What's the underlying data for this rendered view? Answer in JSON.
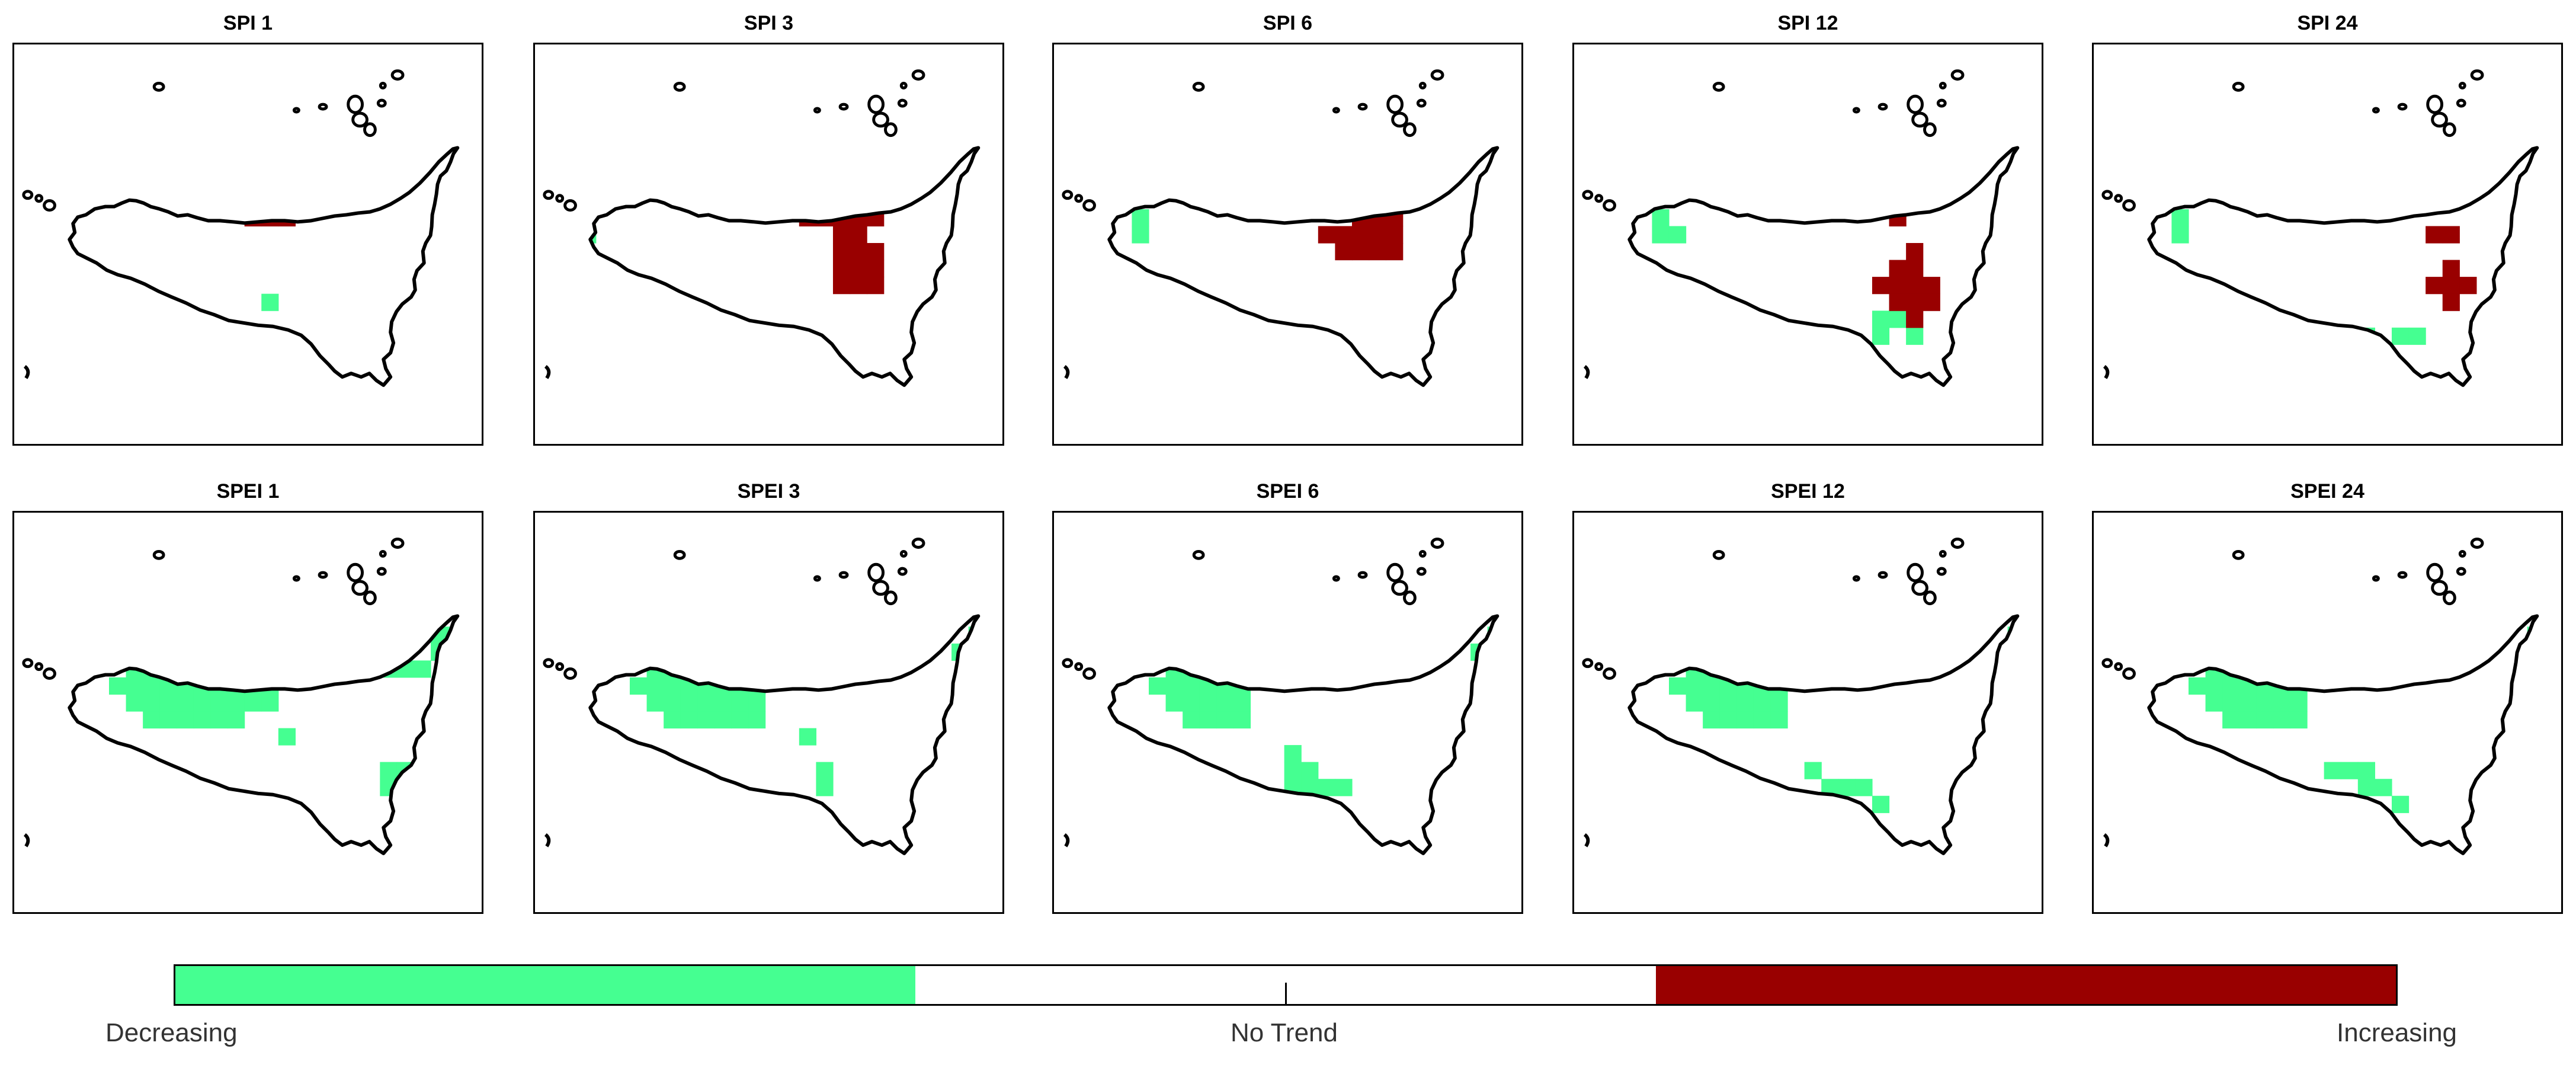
{
  "colors": {
    "decreasing": "#45ff91",
    "no_trend": "#ffffff",
    "increasing": "#990000",
    "outline": "#000000"
  },
  "panels": [
    {
      "title": "SPI 1",
      "decreasing": [
        [
          13,
          13
        ]
      ],
      "increasing": [
        [
          17,
          7
        ],
        [
          18,
          7
        ],
        [
          12,
          8
        ],
        [
          13,
          8
        ],
        [
          14,
          8
        ]
      ]
    },
    {
      "title": "SPI 3",
      "decreasing": [
        [
          1,
          9
        ]
      ],
      "increasing": [
        [
          15,
          7
        ],
        [
          16,
          7
        ],
        [
          17,
          7
        ],
        [
          18,
          7
        ],
        [
          14,
          8
        ],
        [
          15,
          8
        ],
        [
          16,
          8
        ],
        [
          17,
          8
        ],
        [
          18,
          8
        ],
        [
          16,
          9
        ],
        [
          17,
          9
        ],
        [
          16,
          10
        ],
        [
          17,
          10
        ],
        [
          18,
          10
        ],
        [
          16,
          11
        ],
        [
          17,
          11
        ],
        [
          18,
          11
        ],
        [
          16,
          12
        ],
        [
          17,
          12
        ],
        [
          18,
          12
        ]
      ]
    },
    {
      "title": "SPI 6",
      "decreasing": [
        [
          3,
          8
        ],
        [
          3,
          9
        ]
      ],
      "increasing": [
        [
          16,
          7
        ],
        [
          17,
          7
        ],
        [
          18,
          7
        ],
        [
          16,
          8
        ],
        [
          17,
          8
        ],
        [
          18,
          8
        ],
        [
          14,
          9
        ],
        [
          15,
          9
        ],
        [
          16,
          9
        ],
        [
          17,
          9
        ],
        [
          18,
          9
        ],
        [
          15,
          10
        ],
        [
          16,
          10
        ],
        [
          17,
          10
        ],
        [
          18,
          10
        ]
      ]
    },
    {
      "title": "SPI 12",
      "decreasing": [
        [
          3,
          8
        ],
        [
          3,
          9
        ],
        [
          4,
          9
        ],
        [
          16,
          14
        ],
        [
          17,
          14
        ],
        [
          16,
          15
        ],
        [
          18,
          15
        ]
      ],
      "increasing": [
        [
          17,
          8
        ],
        [
          18,
          10
        ],
        [
          17,
          11
        ],
        [
          18,
          11
        ],
        [
          16,
          12
        ],
        [
          17,
          12
        ],
        [
          18,
          12
        ],
        [
          19,
          12
        ],
        [
          17,
          13
        ],
        [
          18,
          13
        ],
        [
          19,
          13
        ],
        [
          18,
          14
        ]
      ]
    },
    {
      "title": "SPI 24",
      "decreasing": [
        [
          3,
          8
        ],
        [
          3,
          9
        ],
        [
          14,
          15
        ],
        [
          16,
          15
        ],
        [
          17,
          15
        ]
      ],
      "increasing": [
        [
          18,
          9
        ],
        [
          19,
          9
        ],
        [
          19,
          11
        ],
        [
          18,
          12
        ],
        [
          19,
          12
        ],
        [
          20,
          12
        ],
        [
          19,
          13
        ]
      ]
    },
    {
      "title": "SPEI 1",
      "decreasing": [
        [
          6,
          5
        ],
        [
          7,
          5
        ],
        [
          8,
          5
        ],
        [
          9,
          5
        ],
        [
          10,
          5
        ],
        [
          11,
          5
        ],
        [
          12,
          5
        ],
        [
          13,
          5
        ],
        [
          14,
          5
        ],
        [
          23,
          5
        ],
        [
          24,
          5
        ],
        [
          5,
          6
        ],
        [
          6,
          6
        ],
        [
          7,
          6
        ],
        [
          8,
          6
        ],
        [
          9,
          6
        ],
        [
          10,
          6
        ],
        [
          11,
          6
        ],
        [
          12,
          6
        ],
        [
          13,
          6
        ],
        [
          14,
          6
        ],
        [
          20,
          6
        ],
        [
          23,
          6
        ],
        [
          24,
          6
        ],
        [
          5,
          7
        ],
        [
          6,
          7
        ],
        [
          7,
          7
        ],
        [
          8,
          7
        ],
        [
          9,
          7
        ],
        [
          10,
          7
        ],
        [
          11,
          7
        ],
        [
          12,
          7
        ],
        [
          13,
          7
        ],
        [
          18,
          7
        ],
        [
          19,
          7
        ],
        [
          20,
          7
        ],
        [
          21,
          7
        ],
        [
          22,
          7
        ],
        [
          4,
          8
        ],
        [
          5,
          8
        ],
        [
          6,
          8
        ],
        [
          7,
          8
        ],
        [
          8,
          8
        ],
        [
          9,
          8
        ],
        [
          10,
          8
        ],
        [
          11,
          8
        ],
        [
          12,
          8
        ],
        [
          13,
          8
        ],
        [
          24,
          8
        ],
        [
          5,
          9
        ],
        [
          6,
          9
        ],
        [
          7,
          9
        ],
        [
          8,
          9
        ],
        [
          9,
          9
        ],
        [
          10,
          9
        ],
        [
          11,
          9
        ],
        [
          12,
          9
        ],
        [
          13,
          9
        ],
        [
          6,
          10
        ],
        [
          7,
          10
        ],
        [
          8,
          10
        ],
        [
          9,
          10
        ],
        [
          10,
          10
        ],
        [
          11,
          10
        ],
        [
          14,
          11
        ],
        [
          20,
          13
        ],
        [
          21,
          13
        ],
        [
          20,
          14
        ],
        [
          21,
          15
        ]
      ],
      "increasing": []
    },
    {
      "title": "SPEI 3",
      "decreasing": [
        [
          6,
          5
        ],
        [
          7,
          5
        ],
        [
          8,
          5
        ],
        [
          9,
          5
        ],
        [
          10,
          5
        ],
        [
          24,
          5
        ],
        [
          5,
          6
        ],
        [
          6,
          6
        ],
        [
          7,
          6
        ],
        [
          8,
          6
        ],
        [
          9,
          6
        ],
        [
          10,
          6
        ],
        [
          11,
          6
        ],
        [
          12,
          6
        ],
        [
          13,
          6
        ],
        [
          14,
          6
        ],
        [
          15,
          6
        ],
        [
          16,
          6
        ],
        [
          17,
          6
        ],
        [
          18,
          6
        ],
        [
          19,
          6
        ],
        [
          23,
          6
        ],
        [
          5,
          7
        ],
        [
          6,
          7
        ],
        [
          7,
          7
        ],
        [
          8,
          7
        ],
        [
          9,
          7
        ],
        [
          10,
          7
        ],
        [
          11,
          7
        ],
        [
          12,
          7
        ],
        [
          4,
          8
        ],
        [
          5,
          8
        ],
        [
          6,
          8
        ],
        [
          7,
          8
        ],
        [
          8,
          8
        ],
        [
          9,
          8
        ],
        [
          10,
          8
        ],
        [
          11,
          8
        ],
        [
          5,
          9
        ],
        [
          6,
          9
        ],
        [
          7,
          9
        ],
        [
          8,
          9
        ],
        [
          9,
          9
        ],
        [
          10,
          9
        ],
        [
          11,
          9
        ],
        [
          6,
          10
        ],
        [
          7,
          10
        ],
        [
          8,
          10
        ],
        [
          9,
          10
        ],
        [
          10,
          10
        ],
        [
          11,
          10
        ],
        [
          14,
          11
        ],
        [
          15,
          13
        ],
        [
          15,
          14
        ]
      ],
      "increasing": []
    },
    {
      "title": "SPEI 6",
      "decreasing": [
        [
          5,
          5
        ],
        [
          6,
          5
        ],
        [
          7,
          5
        ],
        [
          8,
          5
        ],
        [
          9,
          5
        ],
        [
          24,
          5
        ],
        [
          25,
          5
        ],
        [
          5,
          6
        ],
        [
          6,
          6
        ],
        [
          7,
          6
        ],
        [
          8,
          6
        ],
        [
          9,
          6
        ],
        [
          12,
          6
        ],
        [
          14,
          6
        ],
        [
          23,
          6
        ],
        [
          24,
          6
        ],
        [
          5,
          7
        ],
        [
          6,
          7
        ],
        [
          7,
          7
        ],
        [
          8,
          7
        ],
        [
          9,
          7
        ],
        [
          24,
          7
        ],
        [
          4,
          8
        ],
        [
          5,
          8
        ],
        [
          6,
          8
        ],
        [
          7,
          8
        ],
        [
          8,
          8
        ],
        [
          9,
          8
        ],
        [
          5,
          9
        ],
        [
          6,
          9
        ],
        [
          7,
          9
        ],
        [
          8,
          9
        ],
        [
          9,
          9
        ],
        [
          6,
          10
        ],
        [
          7,
          10
        ],
        [
          8,
          10
        ],
        [
          9,
          10
        ],
        [
          12,
          12
        ],
        [
          12,
          13
        ],
        [
          13,
          13
        ],
        [
          12,
          14
        ],
        [
          13,
          14
        ],
        [
          14,
          14
        ],
        [
          15,
          14
        ]
      ],
      "increasing": []
    },
    {
      "title": "SPEI 12",
      "decreasing": [
        [
          5,
          5
        ],
        [
          6,
          5
        ],
        [
          7,
          5
        ],
        [
          8,
          5
        ],
        [
          9,
          5
        ],
        [
          10,
          5
        ],
        [
          24,
          5
        ],
        [
          25,
          5
        ],
        [
          5,
          6
        ],
        [
          6,
          6
        ],
        [
          7,
          6
        ],
        [
          8,
          6
        ],
        [
          9,
          6
        ],
        [
          10,
          6
        ],
        [
          11,
          6
        ],
        [
          12,
          6
        ],
        [
          13,
          6
        ],
        [
          15,
          6
        ],
        [
          16,
          6
        ],
        [
          17,
          6
        ],
        [
          24,
          6
        ],
        [
          25,
          6
        ],
        [
          5,
          7
        ],
        [
          6,
          7
        ],
        [
          7,
          7
        ],
        [
          8,
          7
        ],
        [
          9,
          7
        ],
        [
          10,
          7
        ],
        [
          25,
          7
        ],
        [
          4,
          8
        ],
        [
          5,
          8
        ],
        [
          6,
          8
        ],
        [
          7,
          8
        ],
        [
          8,
          8
        ],
        [
          9,
          8
        ],
        [
          10,
          8
        ],
        [
          5,
          9
        ],
        [
          6,
          9
        ],
        [
          7,
          9
        ],
        [
          8,
          9
        ],
        [
          9,
          9
        ],
        [
          10,
          9
        ],
        [
          6,
          10
        ],
        [
          7,
          10
        ],
        [
          8,
          10
        ],
        [
          9,
          10
        ],
        [
          10,
          10
        ],
        [
          12,
          13
        ],
        [
          13,
          14
        ],
        [
          14,
          14
        ],
        [
          15,
          14
        ],
        [
          16,
          15
        ]
      ],
      "increasing": []
    },
    {
      "title": "SPEI 24",
      "decreasing": [
        [
          5,
          5
        ],
        [
          6,
          5
        ],
        [
          7,
          5
        ],
        [
          8,
          5
        ],
        [
          9,
          5
        ],
        [
          10,
          5
        ],
        [
          24,
          5
        ],
        [
          25,
          5
        ],
        [
          5,
          6
        ],
        [
          6,
          6
        ],
        [
          7,
          6
        ],
        [
          8,
          6
        ],
        [
          9,
          6
        ],
        [
          10,
          6
        ],
        [
          11,
          6
        ],
        [
          12,
          6
        ],
        [
          13,
          6
        ],
        [
          14,
          6
        ],
        [
          15,
          6
        ],
        [
          16,
          6
        ],
        [
          17,
          6
        ],
        [
          24,
          6
        ],
        [
          25,
          6
        ],
        [
          5,
          7
        ],
        [
          6,
          7
        ],
        [
          7,
          7
        ],
        [
          8,
          7
        ],
        [
          9,
          7
        ],
        [
          10,
          7
        ],
        [
          12,
          7
        ],
        [
          13,
          7
        ],
        [
          25,
          7
        ],
        [
          4,
          8
        ],
        [
          5,
          8
        ],
        [
          6,
          8
        ],
        [
          7,
          8
        ],
        [
          8,
          8
        ],
        [
          9,
          8
        ],
        [
          10,
          8
        ],
        [
          5,
          9
        ],
        [
          6,
          9
        ],
        [
          7,
          9
        ],
        [
          8,
          9
        ],
        [
          9,
          9
        ],
        [
          10,
          9
        ],
        [
          6,
          10
        ],
        [
          7,
          10
        ],
        [
          8,
          10
        ],
        [
          9,
          10
        ],
        [
          10,
          10
        ],
        [
          12,
          13
        ],
        [
          13,
          13
        ],
        [
          14,
          13
        ],
        [
          14,
          14
        ],
        [
          15,
          14
        ],
        [
          16,
          15
        ]
      ],
      "increasing": []
    }
  ],
  "legend": {
    "decreasing_label": "Decreasing",
    "no_trend_label": "No Trend",
    "increasing_label": "Increasing"
  }
}
